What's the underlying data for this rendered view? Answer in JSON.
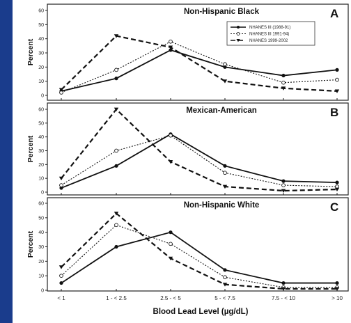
{
  "colors": {
    "background": "#1a3c8c",
    "plot": "#ffffff",
    "ink": "#111111"
  },
  "chart_data": {
    "type": "line",
    "x_categories": [
      "< 1",
      "1 - < 2.5",
      "2.5 - < 5",
      "5 - < 7.5",
      "7.5 - < 10",
      "> 10"
    ],
    "xlabel": "Blood Lead Level (µg/dL)",
    "legend": {
      "placement": "top-right",
      "panel": 0
    },
    "series_styles": [
      {
        "name": "NHANES III (1988-91)",
        "line": "solid",
        "marker": "filled-circle"
      },
      {
        "name": "NHANES III 1991-94)",
        "line": "dotted",
        "marker": "open-circle"
      },
      {
        "name": "NHANES 1999-2002",
        "line": "dashed",
        "marker": "filled-triangle-down"
      }
    ],
    "panels": [
      {
        "title": "Non-Hispanic Black",
        "letter": "A",
        "ylabel": "Percent",
        "ylim": [
          0,
          60
        ],
        "yticks": [
          0,
          10,
          20,
          30,
          40,
          50,
          60
        ],
        "series": [
          {
            "values": [
              3,
              12,
              32,
              20,
              14,
              18
            ]
          },
          {
            "values": [
              2,
              18,
              38,
              22,
              9,
              11
            ]
          },
          {
            "values": [
              4,
              42,
              34,
              10,
              5,
              3
            ]
          }
        ]
      },
      {
        "title": "Mexican-American",
        "letter": "B",
        "ylabel": "Percent",
        "ylim": [
          0,
          60
        ],
        "yticks": [
          0,
          10,
          20,
          30,
          40,
          50,
          60
        ],
        "series": [
          {
            "values": [
              3,
              19,
              42,
              19,
              8,
              7
            ]
          },
          {
            "values": [
              5,
              30,
              41,
              14,
              5,
              4
            ]
          },
          {
            "values": [
              10,
              60,
              22,
              4,
              1,
              2
            ]
          }
        ]
      },
      {
        "title": "Non-Hispanic White",
        "letter": "C",
        "ylabel": "Percent",
        "ylim": [
          0,
          60
        ],
        "yticks": [
          0,
          10,
          20,
          30,
          40,
          50,
          60
        ],
        "series": [
          {
            "values": [
              5,
              30,
              40,
              14,
              5,
              5
            ]
          },
          {
            "values": [
              10,
              45,
              32,
              9,
              2,
              2
            ]
          },
          {
            "values": [
              16,
              53,
              22,
              4,
              1,
              1
            ]
          }
        ]
      }
    ]
  }
}
